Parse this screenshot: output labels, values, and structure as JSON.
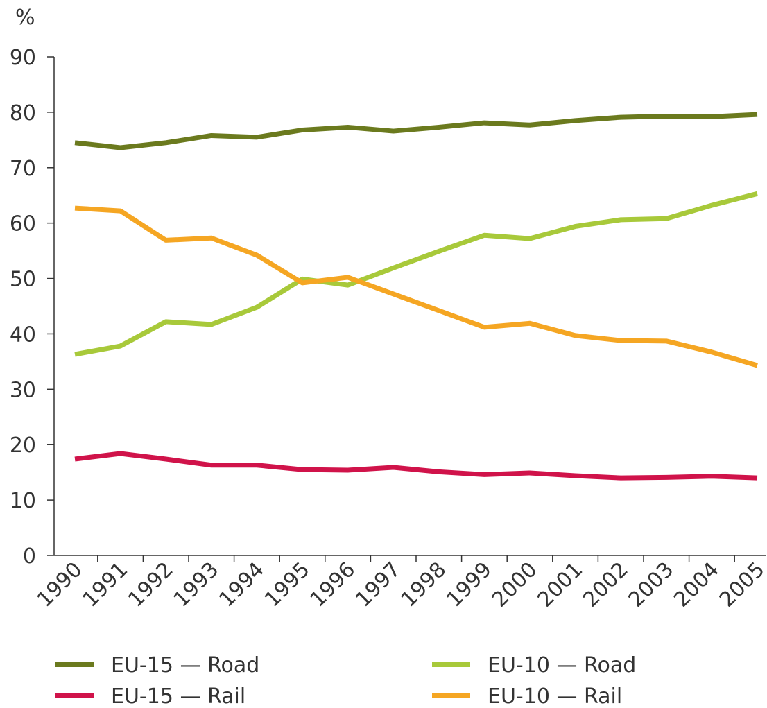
{
  "chart_data": {
    "type": "line",
    "y_label": "%",
    "categories": [
      "1990",
      "1991",
      "1992",
      "1993",
      "1994",
      "1995",
      "1996",
      "1997",
      "1998",
      "1999",
      "2000",
      "2001",
      "2002",
      "2003",
      "2004",
      "2005"
    ],
    "series": [
      {
        "name": "EU-15 — Road",
        "color": "#6b7a1e",
        "values": [
          74.5,
          73.6,
          74.5,
          75.8,
          75.5,
          76.8,
          77.3,
          76.6,
          77.3,
          78.1,
          77.7,
          78.5,
          79.1,
          79.3,
          79.2,
          79.6
        ]
      },
      {
        "name": "EU-10 — Road",
        "color": "#a8c93a",
        "values": [
          36.3,
          37.8,
          42.2,
          41.7,
          44.8,
          49.9,
          48.8,
          51.9,
          54.9,
          57.8,
          57.2,
          59.4,
          60.6,
          60.8,
          63.2,
          65.3
        ]
      },
      {
        "name": "EU-15 — Rail",
        "color": "#d0134a",
        "values": [
          17.4,
          18.4,
          17.4,
          16.3,
          16.3,
          15.5,
          15.4,
          15.9,
          15.1,
          14.6,
          14.9,
          14.4,
          14.0,
          14.1,
          14.3,
          14.0
        ]
      },
      {
        "name": "EU-10 — Rail",
        "color": "#f5a623",
        "values": [
          62.7,
          62.2,
          56.9,
          57.3,
          54.2,
          49.2,
          50.2,
          47.2,
          44.2,
          41.2,
          41.9,
          39.7,
          38.8,
          38.7,
          36.7,
          34.3
        ]
      }
    ],
    "ylim": [
      0,
      90
    ],
    "yticks": [
      0,
      10,
      20,
      30,
      40,
      50,
      60,
      70,
      80,
      90
    ]
  }
}
